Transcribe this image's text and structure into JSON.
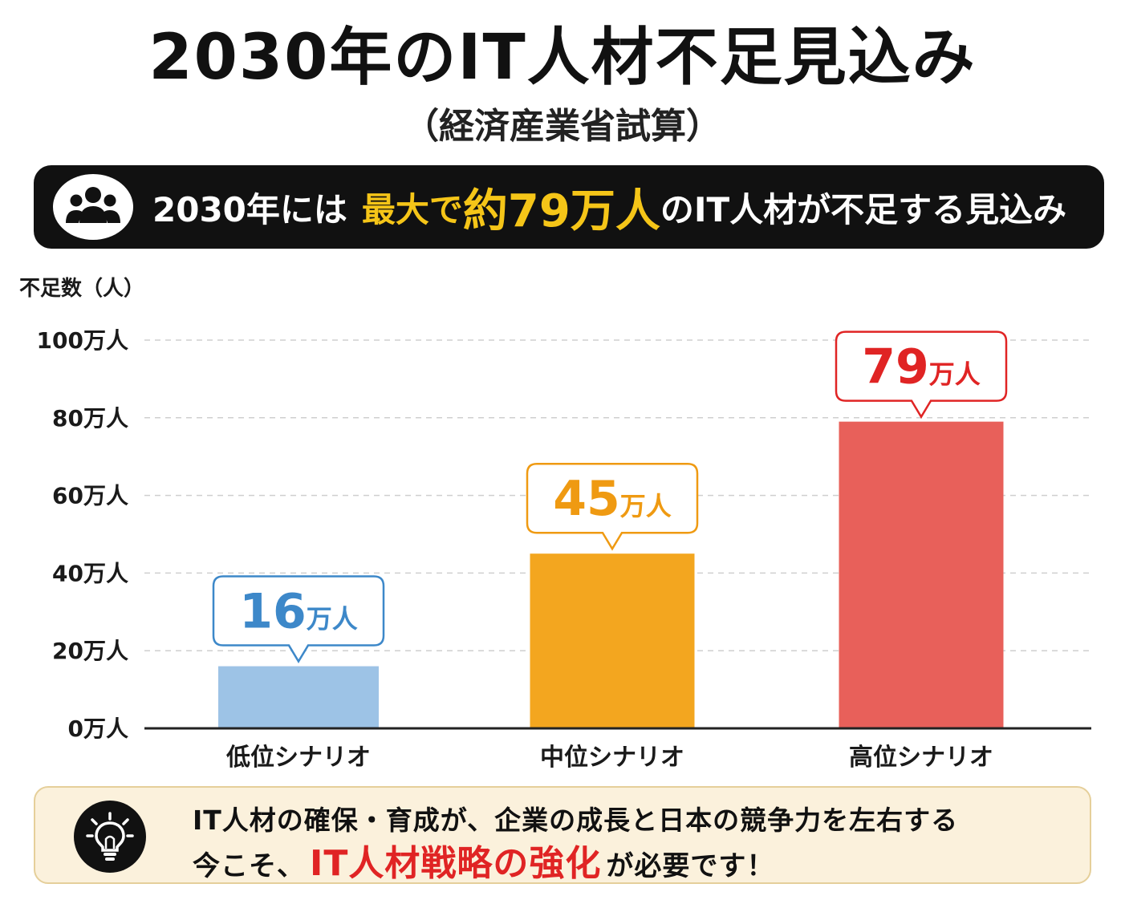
{
  "header": {
    "title": "2030年のIT人材不足見込み",
    "subtitle": "（経済産業省試算）"
  },
  "banner": {
    "icon": "people-group-icon",
    "text_prefix": "2030年には",
    "text_highlight_pre": "最大で",
    "text_highlight_num": "約79万人",
    "text_suffix": "のIT人材が不足する見込み",
    "highlight_color": "#f5c518"
  },
  "chart_data": {
    "type": "bar",
    "ylabel": "不足数（人）",
    "ylim": [
      0,
      100
    ],
    "yticks": [
      0,
      20,
      40,
      60,
      80,
      100
    ],
    "ytick_labels": [
      "0万人",
      "20万人",
      "40万人",
      "60万人",
      "80万人",
      "100万人"
    ],
    "grid": "dashed-horizontal",
    "categories": [
      "低位シナリオ",
      "中位シナリオ",
      "高位シナリオ"
    ],
    "values": [
      16,
      45,
      79
    ],
    "value_numbers": [
      "16",
      "45",
      "79"
    ],
    "value_unit": "万人",
    "colors": [
      "#9dc3e6",
      "#f3a61f",
      "#e8605a"
    ],
    "label_colors": [
      "#3d88c9",
      "#ef9a12",
      "#e02424"
    ]
  },
  "message": {
    "icon": "lightbulb-icon",
    "line1": "IT人材の確保・育成が、企業の成長と日本の競争力を左右する",
    "line2_prefix": "今こそ、",
    "line2_emphasis": "IT人材戦略の強化",
    "line2_suffix": "が必要です！",
    "emphasis_color": "#e02424"
  }
}
